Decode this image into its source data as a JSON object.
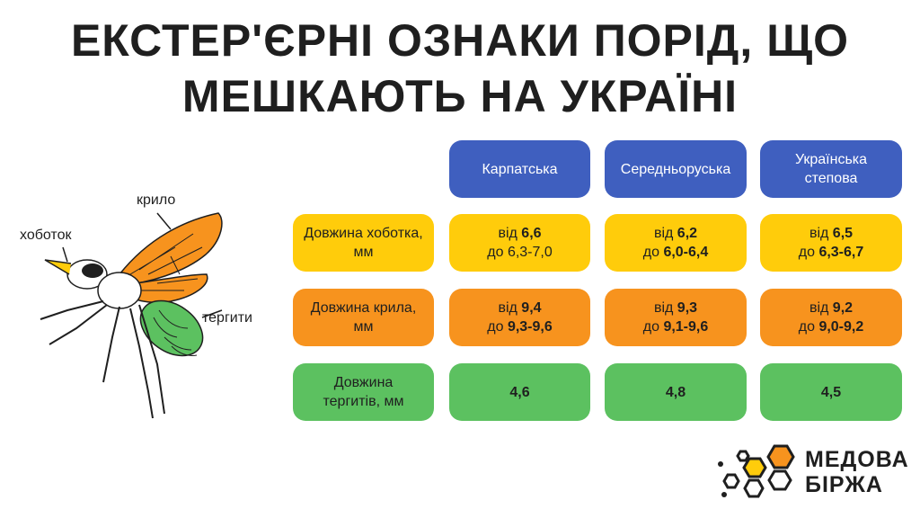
{
  "title": {
    "line1": "ЕКСТЕР'ЄРНІ ОЗНАКИ ПОРІД, ЩО",
    "line2": "МЕШКАЮТЬ НА УКРАЇНІ"
  },
  "diagram": {
    "labels": {
      "proboscis": "хоботок",
      "wing": "крило",
      "tergites": "тергити"
    },
    "colors": {
      "wing": "#f7931e",
      "tergites": "#5cc160",
      "proboscis": "#ffcc0b"
    }
  },
  "table": {
    "columns": [
      "Карпатська",
      "Середньоруська",
      "Українська степова"
    ],
    "rows": [
      {
        "label": "Довжина хоботка, мм",
        "color": "#ffcc0b",
        "cells": [
          {
            "p1": "від ",
            "v1": "6,6",
            "p2": "до ",
            "v2": "6,3-7,0",
            "v2_bold": false
          },
          {
            "p1": "від ",
            "v1": "6,2",
            "p2": "до ",
            "v2": "6,0-6,4",
            "v2_bold": true
          },
          {
            "p1": "від ",
            "v1": "6,5",
            "p2": "до ",
            "v2": "6,3-6,7",
            "v2_bold": true
          }
        ]
      },
      {
        "label": "Довжина крила, мм",
        "color": "#f7931e",
        "cells": [
          {
            "p1": "від ",
            "v1": "9,4",
            "p2": "до ",
            "v2": "9,3-9,6",
            "v2_bold": true
          },
          {
            "p1": "від ",
            "v1": "9,3",
            "p2": "до ",
            "v2": "9,1-9,6",
            "v2_bold": true
          },
          {
            "p1": "від ",
            "v1": "9,2",
            "p2": "до ",
            "v2": "9,0-9,2",
            "v2_bold": true
          }
        ]
      },
      {
        "label": "Довжина тергитів, мм",
        "color": "#5cc160",
        "cells": [
          {
            "value": "4,6"
          },
          {
            "value": "4,8"
          },
          {
            "value": "4,5"
          }
        ]
      }
    ]
  },
  "logo": {
    "line1": "МЕДОВА",
    "line2": "БІРЖА",
    "icon": "honeycomb-icon"
  }
}
